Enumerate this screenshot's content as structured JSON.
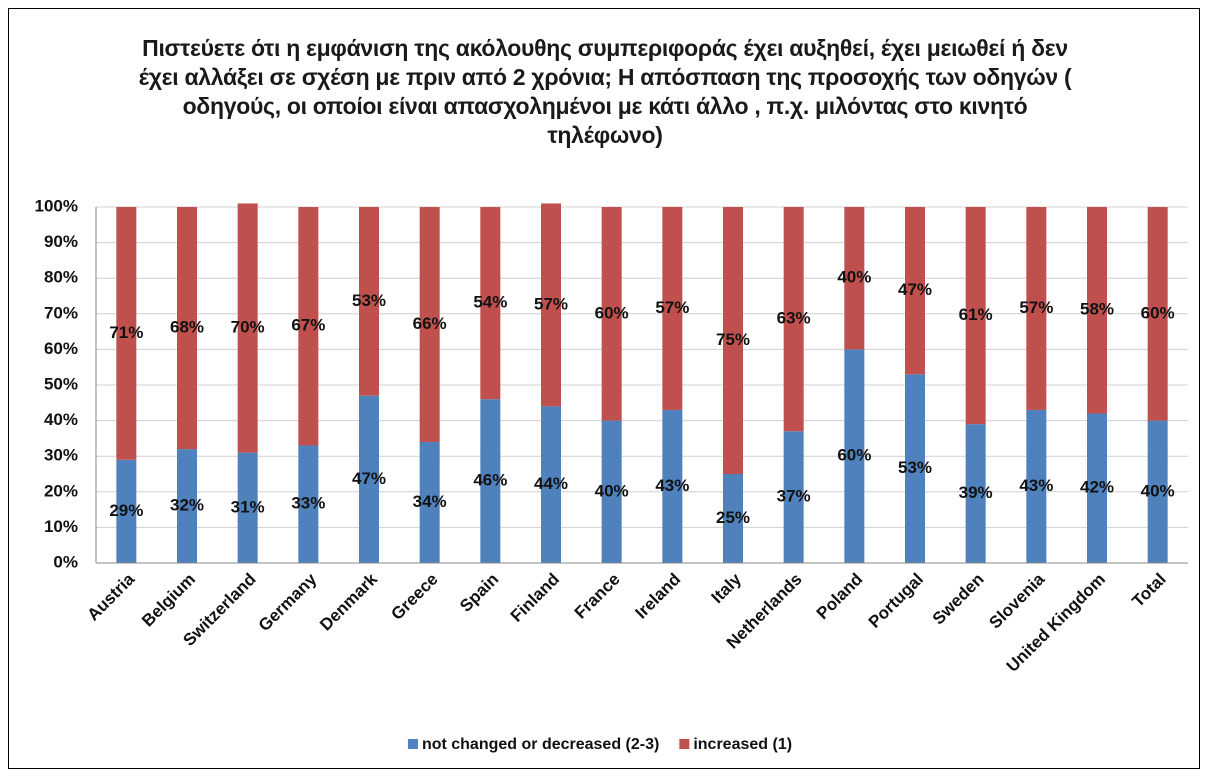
{
  "chart_data": {
    "type": "stacked_bar",
    "title": "Πιστεύετε ότι η εμφάνιση της ακόλουθης συμπεριφοράς έχει αυξηθεί, έχει μειωθεί ή δεν έχει αλλάξει σε σχέση με πριν από 2 χρόνια; Η απόσπαση της προσοχής των οδηγών ( οδηγούς, οι οποίοι είναι απασχολημένοι με κάτι άλλο , π.χ. μιλόντας στο κινητό τηλέφωνο)",
    "categories": [
      "Austria",
      "Belgium",
      "Switzerland",
      "Germany",
      "Denmark",
      "Greece",
      "Spain",
      "Finland",
      "France",
      "Ireland",
      "Italy",
      "Netherlands",
      "Poland",
      "Portugal",
      "Sweden",
      "Slovenia",
      "United Kingdom",
      "Total"
    ],
    "series": [
      {
        "name": "not changed or decreased (2-3)",
        "color": "#4f81bd",
        "values": [
          29,
          32,
          31,
          33,
          47,
          34,
          46,
          44,
          40,
          43,
          25,
          37,
          60,
          53,
          39,
          43,
          42,
          40
        ],
        "value_labels": [
          "29%",
          "32%",
          "31%",
          "33%",
          "47%",
          "34%",
          "46%",
          "44%",
          "40%",
          "43%",
          "25%",
          "37%",
          "60%",
          "53%",
          "39%",
          "43%",
          "42%",
          "40%"
        ]
      },
      {
        "name": "increased (1)",
        "color": "#c0504d",
        "values": [
          71,
          68,
          70,
          67,
          53,
          66,
          54,
          57,
          60,
          57,
          75,
          63,
          40,
          47,
          61,
          57,
          58,
          60
        ],
        "value_labels": [
          "71%",
          "68%",
          "70%",
          "67%",
          "53%",
          "66%",
          "54%",
          "57%",
          "60%",
          "57%",
          "75%",
          "63%",
          "40%",
          "47%",
          "61%",
          "57%",
          "58%",
          "60%"
        ]
      }
    ],
    "ylim": [
      0,
      100
    ],
    "yticks": [
      {
        "value": 0,
        "label": "0%"
      },
      {
        "value": 10,
        "label": "10%"
      },
      {
        "value": 20,
        "label": "20%"
      },
      {
        "value": 30,
        "label": "30%"
      },
      {
        "value": 40,
        "label": "40%"
      },
      {
        "value": 50,
        "label": "50%"
      },
      {
        "value": 60,
        "label": "60%"
      },
      {
        "value": 70,
        "label": "70%"
      },
      {
        "value": 80,
        "label": "80%"
      },
      {
        "value": 90,
        "label": "90%"
      },
      {
        "value": 100,
        "label": "100%"
      }
    ],
    "grid": true,
    "legend": "bottom"
  }
}
